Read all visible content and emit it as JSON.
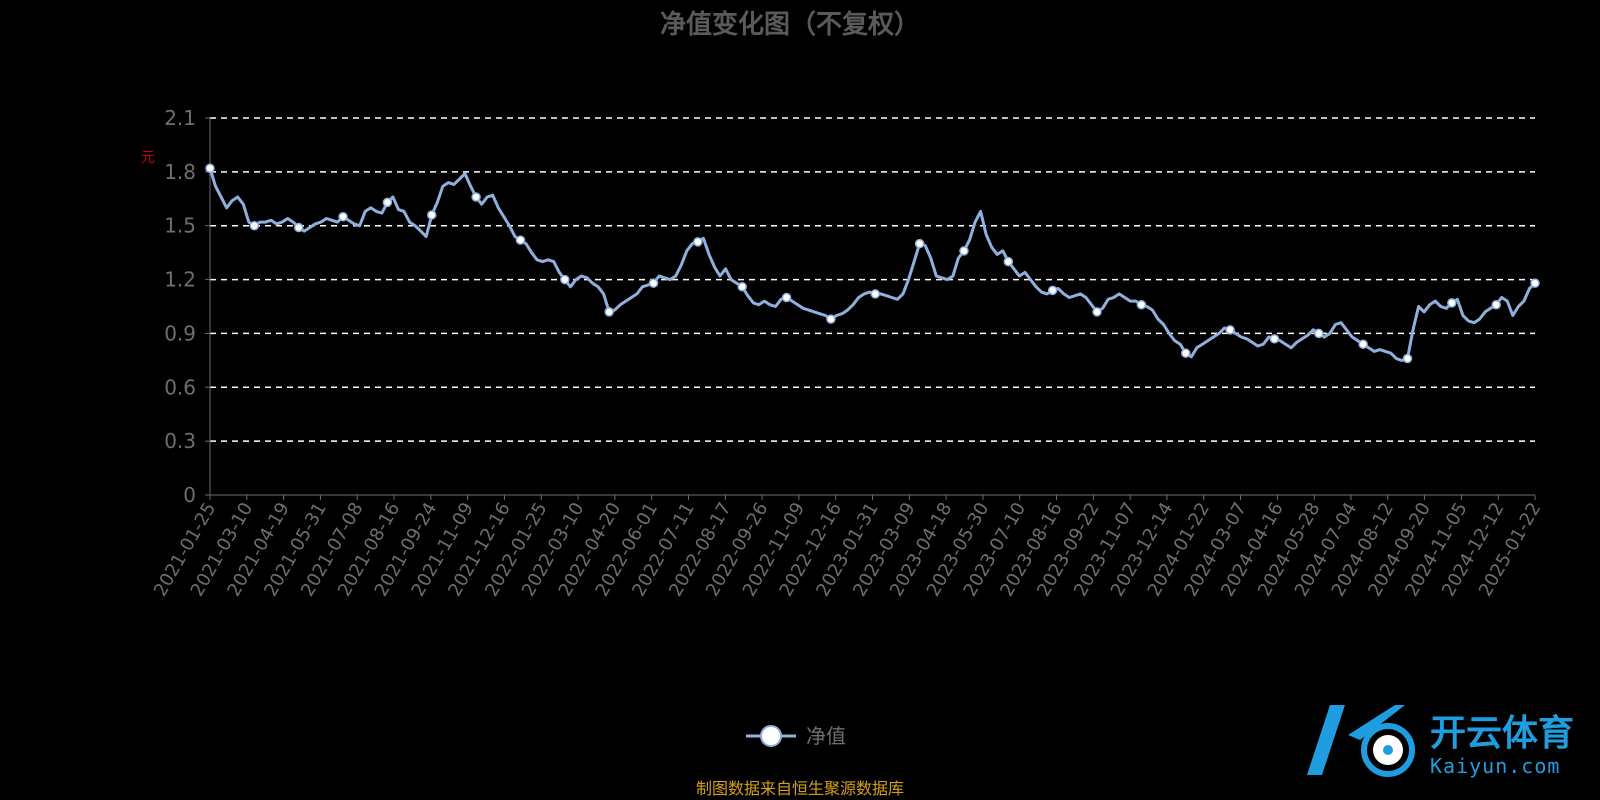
{
  "chart_data": {
    "type": "line",
    "title": "净值变化图（不复权）",
    "yunit": "元",
    "ylim": [
      0,
      2.1
    ],
    "yticks": [
      "0",
      "0.3",
      "0.6",
      "0.9",
      "1.2",
      "1.5",
      "1.8",
      "2.1"
    ],
    "grid": "horizontal-dashed",
    "xticks": [
      "2021-01-25",
      "2021-03-10",
      "2021-04-19",
      "2021-05-31",
      "2021-07-08",
      "2021-08-16",
      "2021-09-24",
      "2021-11-09",
      "2021-12-16",
      "2022-01-25",
      "2022-03-10",
      "2022-04-20",
      "2022-06-01",
      "2022-07-11",
      "2022-08-17",
      "2022-09-26",
      "2022-11-09",
      "2022-12-16",
      "2023-01-31",
      "2023-03-09",
      "2023-04-18",
      "2023-05-30",
      "2023-07-10",
      "2023-08-16",
      "2023-09-22",
      "2023-11-07",
      "2023-12-14",
      "2024-01-22",
      "2024-03-07",
      "2024-04-16",
      "2024-05-28",
      "2024-07-04",
      "2024-08-12",
      "2024-09-20",
      "2024-11-05",
      "2024-12-12",
      "2025-01-22"
    ],
    "legend": {
      "position": "bottom-center"
    },
    "series": [
      {
        "name": "净值",
        "color": "#8fb0dc",
        "values": [
          1.82,
          1.72,
          1.66,
          1.6,
          1.64,
          1.66,
          1.62,
          1.52,
          1.5,
          1.52,
          1.52,
          1.53,
          1.51,
          1.52,
          1.54,
          1.52,
          1.49,
          1.47,
          1.49,
          1.51,
          1.52,
          1.54,
          1.53,
          1.52,
          1.55,
          1.53,
          1.51,
          1.5,
          1.58,
          1.6,
          1.58,
          1.57,
          1.63,
          1.66,
          1.59,
          1.58,
          1.52,
          1.5,
          1.47,
          1.44,
          1.56,
          1.63,
          1.72,
          1.74,
          1.73,
          1.76,
          1.79,
          1.72,
          1.66,
          1.62,
          1.66,
          1.67,
          1.6,
          1.55,
          1.5,
          1.44,
          1.42,
          1.4,
          1.35,
          1.31,
          1.3,
          1.31,
          1.3,
          1.24,
          1.2,
          1.16,
          1.2,
          1.22,
          1.21,
          1.18,
          1.16,
          1.12,
          1.02,
          1.03,
          1.06,
          1.08,
          1.1,
          1.12,
          1.16,
          1.17,
          1.18,
          1.22,
          1.21,
          1.2,
          1.22,
          1.28,
          1.36,
          1.4,
          1.41,
          1.43,
          1.34,
          1.27,
          1.22,
          1.26,
          1.2,
          1.18,
          1.16,
          1.11,
          1.07,
          1.06,
          1.08,
          1.06,
          1.05,
          1.09,
          1.1,
          1.08,
          1.06,
          1.04,
          1.03,
          1.02,
          1.01,
          1.0,
          0.98,
          1.0,
          1.01,
          1.03,
          1.06,
          1.1,
          1.12,
          1.13,
          1.12,
          1.12,
          1.11,
          1.1,
          1.09,
          1.12,
          1.2,
          1.3,
          1.4,
          1.39,
          1.32,
          1.22,
          1.21,
          1.2,
          1.22,
          1.32,
          1.36,
          1.42,
          1.52,
          1.58,
          1.45,
          1.38,
          1.34,
          1.36,
          1.3,
          1.26,
          1.22,
          1.24,
          1.2,
          1.16,
          1.13,
          1.12,
          1.14,
          1.15,
          1.12,
          1.1,
          1.11,
          1.12,
          1.1,
          1.06,
          1.02,
          1.04,
          1.09,
          1.1,
          1.12,
          1.1,
          1.08,
          1.08,
          1.06,
          1.05,
          1.03,
          0.98,
          0.95,
          0.9,
          0.86,
          0.84,
          0.79,
          0.77,
          0.82,
          0.84,
          0.86,
          0.88,
          0.9,
          0.93,
          0.92,
          0.9,
          0.88,
          0.87,
          0.85,
          0.83,
          0.84,
          0.88,
          0.87,
          0.86,
          0.84,
          0.82,
          0.85,
          0.87,
          0.89,
          0.92,
          0.9,
          0.88,
          0.9,
          0.95,
          0.96,
          0.92,
          0.88,
          0.86,
          0.84,
          0.82,
          0.8,
          0.81,
          0.8,
          0.79,
          0.76,
          0.75,
          0.76,
          0.92,
          1.05,
          1.02,
          1.06,
          1.08,
          1.05,
          1.04,
          1.07,
          1.09,
          1.0,
          0.97,
          0.96,
          0.98,
          1.02,
          1.04,
          1.06,
          1.1,
          1.08,
          1.0,
          1.05,
          1.08,
          1.15,
          1.18
        ]
      }
    ],
    "markers_every": 8
  },
  "source_note": "制图数据来自恒生聚源数据库",
  "watermark": {
    "cn": "开云体育",
    "en": "Kaiyun.com"
  },
  "colors": {
    "line": "#8fb0dc",
    "marker_fill": "#ffffff",
    "grid": "#ffffff",
    "axis": "#6e6e6e",
    "accent": "#1e9ee0"
  }
}
